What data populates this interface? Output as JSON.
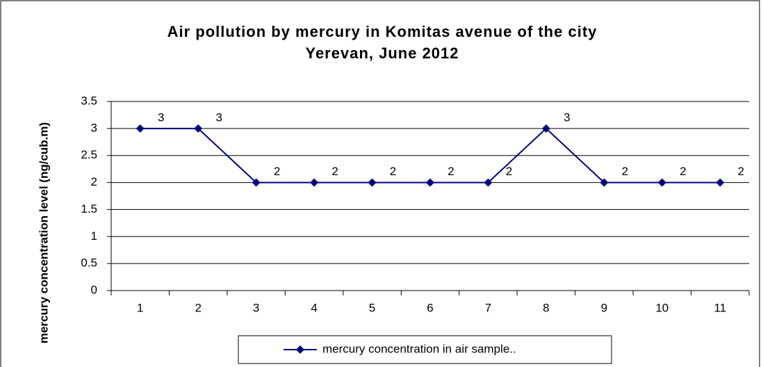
{
  "chart_data": {
    "type": "line",
    "title": "Air pollution by mercury in Komitas avenue of the city Yerevan, June 2012",
    "y_label": "mercury concentration level (ng/cub.m)",
    "categories": [
      "1",
      "2",
      "3",
      "4",
      "5",
      "6",
      "7",
      "8",
      "9",
      "10",
      "11"
    ],
    "series": [
      {
        "name": "mercury concentration in air sample..",
        "color": "#000080",
        "values": [
          3,
          3,
          2,
          2,
          2,
          2,
          2,
          3,
          2,
          2,
          2
        ]
      }
    ],
    "ylim": [
      0,
      3.5
    ],
    "yticks": [
      0,
      0.5,
      1,
      1.5,
      2,
      2.5,
      3,
      3.5
    ],
    "grid": true,
    "legend": "bottom"
  }
}
